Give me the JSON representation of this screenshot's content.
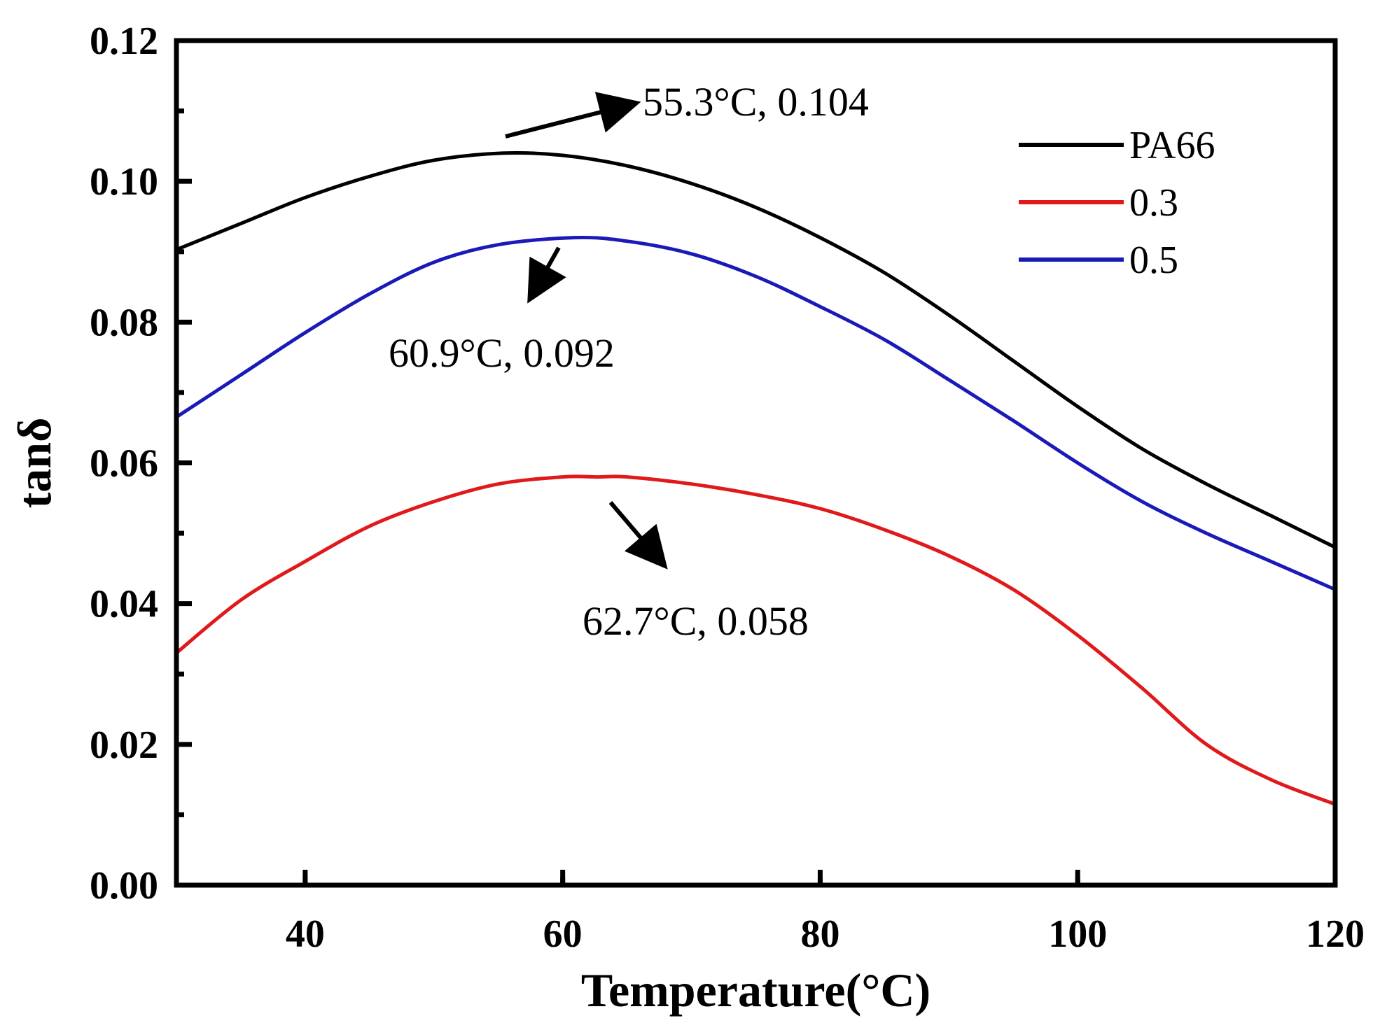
{
  "chart_data": {
    "type": "line",
    "title": "",
    "xlabel": "Temperature(°C)",
    "ylabel": "tanδ",
    "xlim": [
      30,
      120
    ],
    "ylim": [
      0.0,
      0.12
    ],
    "x_ticks": [
      40,
      60,
      80,
      100,
      120
    ],
    "x_tick_labels": [
      "40",
      "60",
      "80",
      "100",
      "120"
    ],
    "y_ticks": [
      0.0,
      0.02,
      0.04,
      0.06,
      0.08,
      0.1,
      0.12
    ],
    "y_tick_labels": [
      "0.00",
      "0.02",
      "0.04",
      "0.06",
      "0.08",
      "0.10",
      "0.12"
    ],
    "grid": false,
    "legend_position": "top-right",
    "series": [
      {
        "name": "PA66",
        "color": "#000000",
        "points": [
          [
            30,
            0.0903
          ],
          [
            35,
            0.094
          ],
          [
            40,
            0.0977
          ],
          [
            45,
            0.1007
          ],
          [
            50,
            0.103
          ],
          [
            55.3,
            0.104
          ],
          [
            60,
            0.1037
          ],
          [
            65,
            0.1022
          ],
          [
            70,
            0.0997
          ],
          [
            75,
            0.0963
          ],
          [
            80,
            0.092
          ],
          [
            85,
            0.087
          ],
          [
            90,
            0.081
          ],
          [
            95,
            0.0745
          ],
          [
            100,
            0.068
          ],
          [
            105,
            0.062
          ],
          [
            110,
            0.057
          ],
          [
            115,
            0.0525
          ],
          [
            120,
            0.048
          ]
        ]
      },
      {
        "name": "0.3",
        "color": "#e0191b",
        "points": [
          [
            30,
            0.033
          ],
          [
            35,
            0.0405
          ],
          [
            40,
            0.046
          ],
          [
            45,
            0.051
          ],
          [
            50,
            0.0545
          ],
          [
            55,
            0.057
          ],
          [
            60,
            0.058
          ],
          [
            62.7,
            0.058
          ],
          [
            65,
            0.058
          ],
          [
            70,
            0.057
          ],
          [
            75,
            0.0555
          ],
          [
            80,
            0.0535
          ],
          [
            85,
            0.0505
          ],
          [
            90,
            0.0468
          ],
          [
            95,
            0.042
          ],
          [
            100,
            0.0355
          ],
          [
            105,
            0.028
          ],
          [
            110,
            0.02
          ],
          [
            115,
            0.015
          ],
          [
            120,
            0.0115
          ]
        ]
      },
      {
        "name": "0.5",
        "color": "#1a1ab8",
        "points": [
          [
            30,
            0.0665
          ],
          [
            35,
            0.0725
          ],
          [
            40,
            0.0785
          ],
          [
            45,
            0.084
          ],
          [
            50,
            0.0885
          ],
          [
            55,
            0.091
          ],
          [
            60.9,
            0.092
          ],
          [
            65,
            0.0915
          ],
          [
            70,
            0.0897
          ],
          [
            75,
            0.0865
          ],
          [
            80,
            0.0822
          ],
          [
            85,
            0.0775
          ],
          [
            90,
            0.0718
          ],
          [
            95,
            0.066
          ],
          [
            100,
            0.06
          ],
          [
            105,
            0.0545
          ],
          [
            110,
            0.05
          ],
          [
            115,
            0.046
          ],
          [
            120,
            0.042
          ]
        ]
      }
    ],
    "annotations": [
      {
        "text": "55.3°C, 0.104",
        "series": "PA66",
        "x": 55.3,
        "y": 0.104
      },
      {
        "text": "60.9°C, 0.092",
        "series": "0.5",
        "x": 60.9,
        "y": 0.092
      },
      {
        "text": "62.7°C, 0.058",
        "series": "0.3",
        "x": 62.7,
        "y": 0.058
      }
    ]
  }
}
